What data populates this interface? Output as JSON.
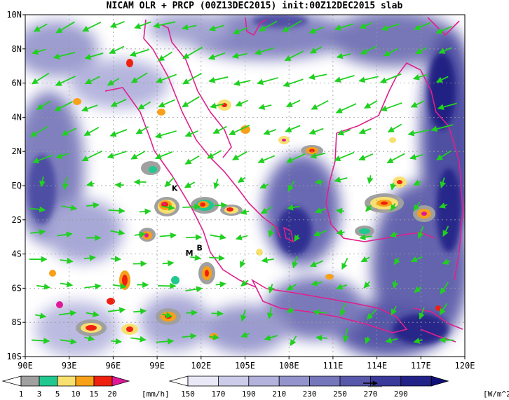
{
  "title": "NICAM OLR + PRCP (00Z13DEC2015) init:00Z12DEC2015 slab",
  "lat_labels": [
    "10N",
    "8N",
    "6N",
    "4N",
    "2N",
    "EQ",
    "2S",
    "4S",
    "6S",
    "8S",
    "10S"
  ],
  "lon_labels": [
    "90E",
    "93E",
    "96E",
    "99E",
    "102E",
    "105E",
    "108E",
    "111E",
    "114E",
    "117E",
    "120E"
  ],
  "station_labels": [
    {
      "name": "K",
      "lon": 100.2,
      "lat": -0.3
    },
    {
      "name": "M",
      "lon": 101.2,
      "lat": -4.1
    },
    {
      "name": "B",
      "lon": 101.9,
      "lat": -3.8
    }
  ],
  "precip_colorbar": {
    "labels": [
      "1",
      "3",
      "5",
      "10",
      "15",
      "20"
    ],
    "unit": "[mm/h]",
    "colors": [
      "#ffffff",
      "#a0a0a0",
      "#20c890",
      "#f8e070",
      "#f8a018",
      "#f02010",
      "#e01898"
    ]
  },
  "olr_colorbar": {
    "labels": [
      "150",
      "170",
      "190",
      "210",
      "230",
      "250",
      "270",
      "290"
    ],
    "unit": "[W/m^2]",
    "colors": [
      "#ffffff",
      "#e8e8f6",
      "#ccccea",
      "#b2b2dc",
      "#9494cc",
      "#7676bc",
      "#5858aa",
      "#3a3a9a",
      "#222288",
      "#101078"
    ]
  },
  "colors": {
    "coastline": "#e0208c",
    "wind_vectors": "#20d020",
    "cloud": "#3a3aa0",
    "grid": "#999999"
  },
  "icons": [
    "reference-vector-icon"
  ]
}
